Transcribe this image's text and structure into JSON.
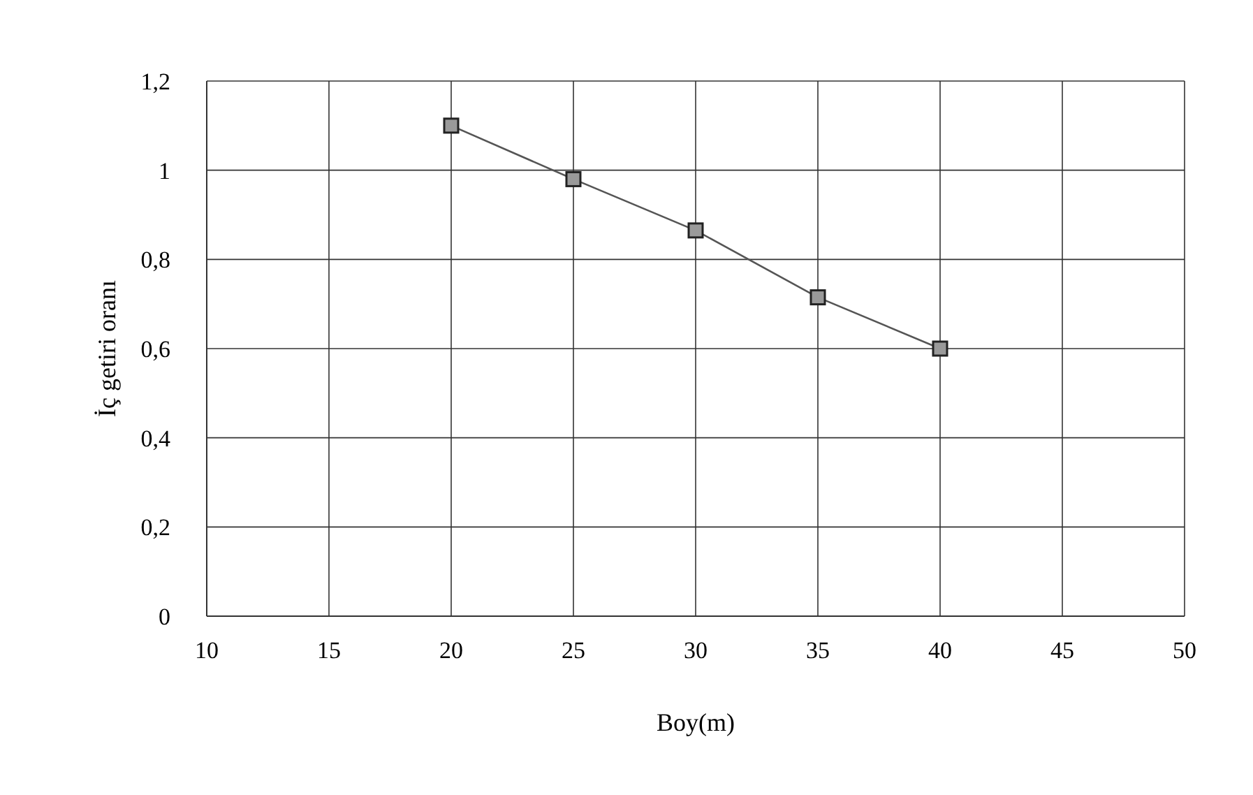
{
  "chart_data": {
    "type": "line",
    "xlabel": "Boy(m)",
    "ylabel": "İç getiri oranı",
    "x": [
      20,
      25,
      30,
      35,
      40
    ],
    "series": [
      {
        "color": "#555555",
        "values": [
          1.1,
          0.98,
          0.865,
          0.715,
          0.6
        ]
      }
    ],
    "xlim": [
      10,
      50
    ],
    "xticks": [
      10,
      15,
      20,
      25,
      30,
      35,
      40,
      45,
      50
    ],
    "ylim": [
      0,
      1.2
    ],
    "yticks": [
      0,
      {
        "value": 0.2,
        "label": "0,2"
      },
      {
        "value": 0.4,
        "label": "0,4"
      },
      {
        "value": 0.6,
        "label": "0,6"
      },
      {
        "value": 0.8,
        "label": "0,8"
      },
      1,
      {
        "value": 1.2,
        "label": "1,2"
      }
    ],
    "grid": true,
    "marker": "square",
    "line_style": "solid",
    "legend": false
  }
}
